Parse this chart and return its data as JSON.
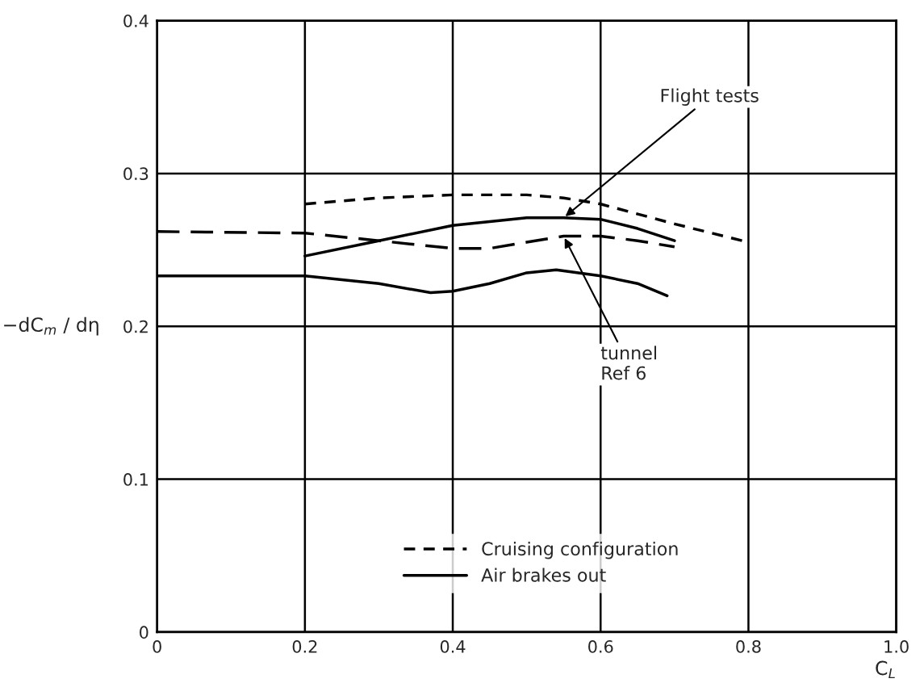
{
  "chart_data": {
    "type": "line",
    "xlabel": "C$_{L}$",
    "ylabel": "−dC$_{m}$ / dη",
    "xlim": [
      0,
      1.0
    ],
    "ylim": [
      0,
      0.4
    ],
    "xticks": [
      0,
      0.2,
      0.4,
      0.6,
      0.8,
      {
        "value": 1.0,
        "label": "1.0"
      }
    ],
    "yticks": [
      0,
      0.1,
      0.2,
      0.3,
      0.4
    ],
    "grid": true,
    "legend": "bottom",
    "marker": "none",
    "series": [
      {
        "name": "Cruising configuration",
        "color": "#000000",
        "line_style": "dotted",
        "x": [
          0.2,
          0.3,
          0.4,
          0.5,
          0.55,
          0.6,
          0.7,
          0.8
        ],
        "values": [
          0.28,
          0.284,
          0.286,
          0.286,
          0.284,
          0.28,
          0.267,
          0.255
        ]
      },
      {
        "color": "#000000",
        "line_style": "dashed",
        "x": [
          0,
          0.2,
          0.3,
          0.4,
          0.45,
          0.5,
          0.55,
          0.6,
          0.65,
          0.7
        ],
        "values": [
          0.262,
          0.261,
          0.256,
          0.251,
          0.251,
          0.255,
          0.259,
          0.259,
          0.256,
          0.252
        ]
      },
      {
        "name": "Air brakes out",
        "color": "#000000",
        "line_style": "solid",
        "x": [
          0.2,
          0.3,
          0.4,
          0.5,
          0.55,
          0.6,
          0.65,
          0.7
        ],
        "values": [
          0.246,
          0.256,
          0.266,
          0.271,
          0.271,
          0.27,
          0.264,
          0.256
        ]
      },
      {
        "color": "#000000",
        "line_style": "solid",
        "x": [
          0,
          0.2,
          0.3,
          0.37,
          0.4,
          0.45,
          0.5,
          0.54,
          0.6,
          0.65,
          0.69
        ],
        "values": [
          0.233,
          0.233,
          0.228,
          0.222,
          0.223,
          0.228,
          0.235,
          0.237,
          0.233,
          0.228,
          0.22
        ]
      }
    ],
    "annotations": [
      {
        "text": "Flight tests",
        "x": 0.55,
        "y": 0.271
      },
      {
        "text": "tunnel\nRef 6",
        "x": 0.55,
        "y": 0.259
      }
    ]
  }
}
